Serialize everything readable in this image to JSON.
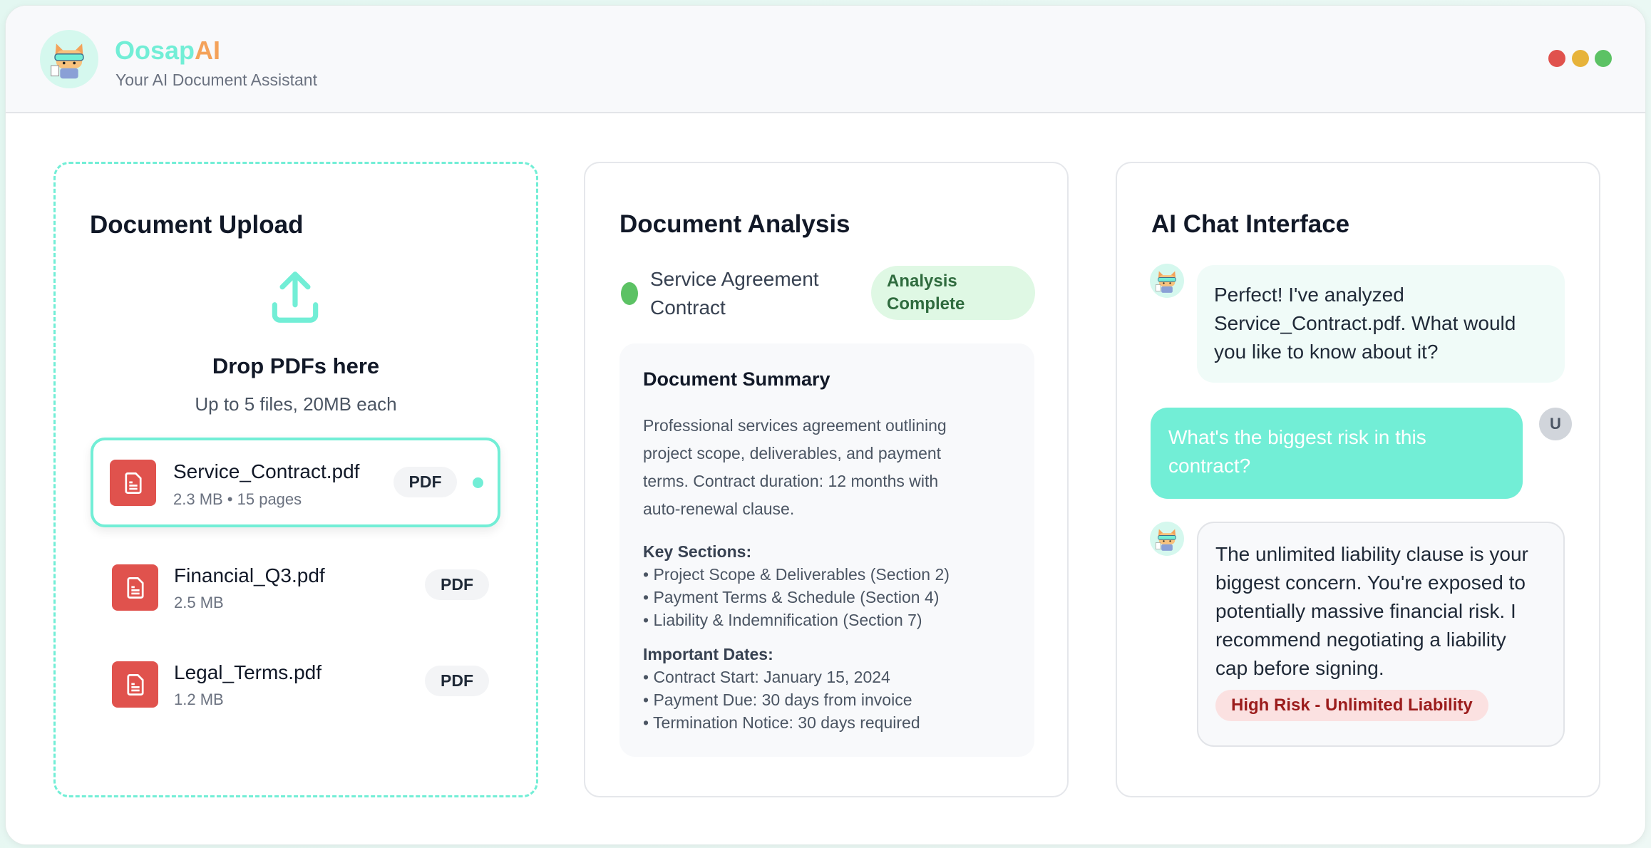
{
  "header": {
    "brand_part1": "Oosap",
    "brand_part2": "AI",
    "subtitle": "Your AI Document Assistant",
    "window_controls": {
      "close": "#e0524d",
      "minimize": "#e7b33a",
      "maximize": "#5cc264"
    }
  },
  "upload": {
    "title": "Document Upload",
    "icon": "upload-icon",
    "drop_title": "Drop PDFs here",
    "drop_hint": "Up to 5 files, 20MB each",
    "files": [
      {
        "name": "Service_Contract.pdf",
        "meta": "2.3 MB • 15 pages",
        "type": "PDF",
        "selected": true
      },
      {
        "name": "Financial_Q3.pdf",
        "meta": "2.5 MB",
        "type": "PDF"
      },
      {
        "name": "Legal_Terms.pdf",
        "meta": "1.2 MB",
        "type": "PDF"
      }
    ]
  },
  "analysis": {
    "title": "Document Analysis",
    "doc_name_lines": [
      "Service Agreement",
      "Contract"
    ],
    "status_lines": [
      "Analysis",
      "Complete"
    ],
    "summary": {
      "title": "Document Summary",
      "text_lines": [
        "Professional services agreement outlining",
        "project scope, deliverables, and payment",
        "terms. Contract duration: 12 months with",
        "auto-renewal clause."
      ],
      "key_sections_label": "Key Sections:",
      "key_sections": [
        "• Project Scope & Deliverables (Section 2)",
        "• Payment Terms & Schedule (Section 4)",
        "• Liability & Indemnification (Section 7)"
      ],
      "dates_label": "Important Dates:",
      "dates": [
        "• Contract Start: January 15, 2024",
        "• Payment Due: 30 days from invoice",
        "• Termination Notice: 30 days required"
      ]
    }
  },
  "chat": {
    "title": "AI Chat Interface",
    "user_initial": "U",
    "messages": [
      {
        "role": "assistant",
        "lines": [
          "Perfect! I've analyzed",
          "Service_Contract.pdf. What would",
          "you like to know about it?"
        ]
      },
      {
        "role": "user",
        "lines": [
          "What's the biggest risk in this",
          "contract?"
        ]
      },
      {
        "role": "assistant",
        "lines": [
          "The unlimited liability clause is your",
          "biggest concern. You're exposed to",
          "potentially massive financial risk. I",
          "recommend negotiating a liability",
          "cap before signing."
        ],
        "badge": "High Risk - Unlimited Liability"
      }
    ]
  }
}
